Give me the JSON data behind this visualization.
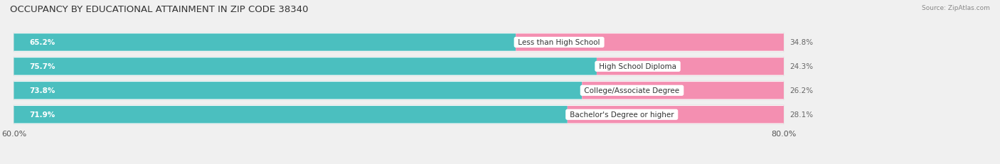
{
  "title": "OCCUPANCY BY EDUCATIONAL ATTAINMENT IN ZIP CODE 38340",
  "source": "Source: ZipAtlas.com",
  "categories": [
    "Less than High School",
    "High School Diploma",
    "College/Associate Degree",
    "Bachelor's Degree or higher"
  ],
  "owner_values": [
    65.2,
    75.7,
    73.8,
    71.9
  ],
  "renter_values": [
    34.8,
    24.3,
    26.2,
    28.1
  ],
  "owner_color": "#4BBFBF",
  "renter_color": "#F48FB1",
  "background_color": "#f0f0f0",
  "row_bg_color": "#ffffff",
  "xlim_left": 60.0,
  "xlim_right": 80.0,
  "title_fontsize": 9.5,
  "source_fontsize": 6.5,
  "axis_fontsize": 8,
  "bar_label_fontsize": 7.5,
  "cat_label_fontsize": 7.5,
  "legend_fontsize": 7.5
}
